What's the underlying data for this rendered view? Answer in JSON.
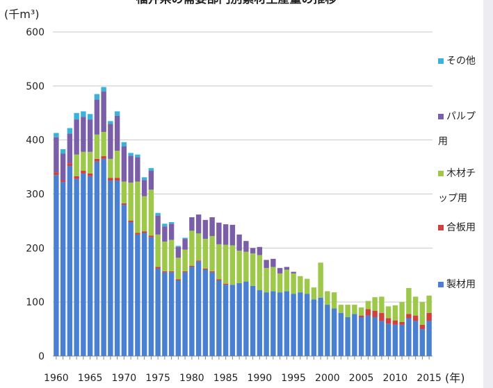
{
  "chart_data": {
    "type": "bar",
    "stacked": true,
    "title": "福井県の需要部門別素材生産量の推移",
    "y_label": "(千m³)",
    "x_label": "(年)",
    "categories": [
      "1960",
      null,
      null,
      null,
      null,
      "1965",
      null,
      null,
      null,
      null,
      "1970",
      null,
      null,
      null,
      null,
      "1975",
      null,
      null,
      null,
      null,
      "1980",
      null,
      null,
      null,
      null,
      "1985",
      null,
      null,
      null,
      null,
      "1990",
      null,
      null,
      null,
      null,
      "1995",
      null,
      null,
      null,
      null,
      "2000",
      null,
      null,
      null,
      null,
      "2005",
      null,
      null,
      null,
      null,
      "2010",
      null,
      null,
      null,
      null,
      "2015"
    ],
    "ylim": [
      0,
      600
    ],
    "yticks": [
      0,
      100,
      200,
      300,
      400,
      500,
      600
    ],
    "grid": true,
    "series": [
      {
        "name": "製材用",
        "color": "#4a80d2",
        "values": [
          335,
          322,
          352,
          328,
          338,
          333,
          360,
          365,
          325,
          325,
          280,
          248,
          225,
          228,
          220,
          162,
          155,
          155,
          140,
          155,
          165,
          175,
          160,
          155,
          140,
          132,
          132,
          135,
          138,
          130,
          122,
          118,
          120,
          118,
          120,
          115,
          118,
          115,
          105,
          108,
          95,
          88,
          80,
          72,
          78,
          72,
          75,
          72,
          65,
          60,
          58,
          58,
          70,
          65,
          50,
          65
        ]
      },
      {
        "name": "合板用",
        "color": "#d0403c",
        "values": [
          5,
          3,
          5,
          5,
          5,
          5,
          5,
          5,
          5,
          5,
          3,
          3,
          3,
          3,
          3,
          3,
          2,
          2,
          2,
          2,
          2,
          2,
          2,
          2,
          2,
          2,
          0,
          0,
          0,
          0,
          0,
          0,
          0,
          0,
          0,
          0,
          0,
          0,
          0,
          0,
          0,
          0,
          0,
          0,
          0,
          3,
          12,
          12,
          15,
          10,
          8,
          5,
          8,
          10,
          8,
          15
        ]
      },
      {
        "name": "木材チップ用",
        "color": "#9ec84a",
        "values": [
          0,
          0,
          0,
          40,
          35,
          40,
          45,
          45,
          35,
          50,
          40,
          70,
          95,
          65,
          85,
          60,
          55,
          58,
          40,
          40,
          65,
          50,
          55,
          65,
          65,
          72,
          73,
          60,
          55,
          60,
          65,
          45,
          45,
          35,
          40,
          38,
          30,
          28,
          22,
          65,
          25,
          30,
          15,
          23,
          17,
          15,
          15,
          25,
          30,
          22,
          28,
          37,
          48,
          35,
          42,
          32
        ]
      },
      {
        "name": "パルプ用",
        "color": "#7b5ea8",
        "values": [
          65,
          50,
          55,
          65,
          65,
          60,
          65,
          75,
          65,
          65,
          65,
          50,
          45,
          30,
          35,
          35,
          28,
          30,
          20,
          20,
          25,
          35,
          35,
          35,
          40,
          38,
          38,
          30,
          20,
          10,
          15,
          15,
          15,
          10,
          5,
          3,
          0,
          0,
          0,
          0,
          0,
          0,
          0,
          0,
          0,
          0,
          0,
          0,
          0,
          0,
          0,
          0,
          0,
          0,
          0,
          0
        ]
      },
      {
        "name": "その他",
        "color": "#3bb3d8",
        "values": [
          8,
          8,
          10,
          12,
          10,
          10,
          10,
          8,
          5,
          8,
          8,
          5,
          5,
          5,
          5,
          5,
          5,
          3,
          2,
          2,
          0,
          0,
          0,
          0,
          0,
          0,
          0,
          0,
          0,
          0,
          0,
          0,
          0,
          0,
          0,
          0,
          0,
          0,
          0,
          0,
          0,
          0,
          0,
          0,
          0,
          0,
          0,
          0,
          0,
          0,
          0,
          0,
          0,
          0,
          0,
          0
        ]
      }
    ]
  }
}
